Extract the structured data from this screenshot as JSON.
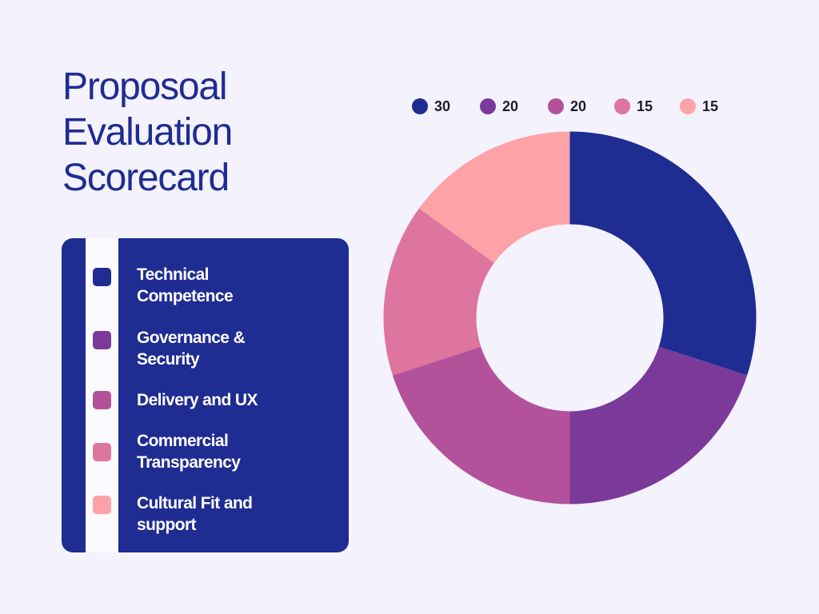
{
  "title_lines": [
    "Proposoal",
    "Evaluation",
    "Scorecard"
  ],
  "colors": {
    "background": "#f3f2fd",
    "panel": "#1f2c92",
    "title": "#1f2c92"
  },
  "chart_data": {
    "type": "pie",
    "variant": "donut",
    "title": "Proposoal Evaluation Scorecard",
    "categories": [
      "Technical Competence",
      "Governance & Security",
      "Delivery and UX",
      "Commercial Transparency",
      "Cultural Fit and support"
    ],
    "values": [
      30,
      20,
      20,
      15,
      15
    ],
    "value_labels": [
      "30",
      "20",
      "20",
      "15",
      "15"
    ],
    "colors": [
      "#1f2c92",
      "#7b3a9a",
      "#b3529b",
      "#de759e",
      "#fda2a7"
    ],
    "legend_labels": [
      "Technical\nCompetence",
      "Governance &\nSecurity",
      "Delivery and UX",
      "Commercial\nTransparency",
      "Cultural Fit and\nsupport"
    ],
    "legend_position": "left",
    "value_legend_position": "top"
  }
}
